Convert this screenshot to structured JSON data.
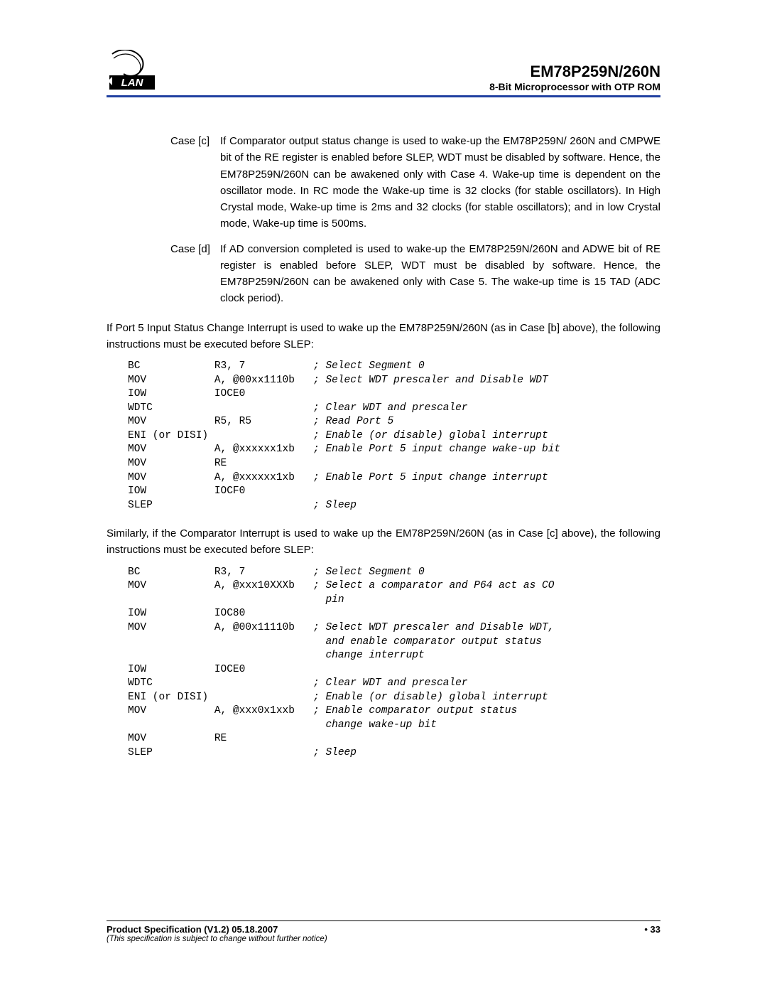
{
  "header": {
    "title": "EM78P259N/260N",
    "subtitle": "8-Bit Microprocessor with OTP ROM"
  },
  "cases": [
    {
      "label": "Case [c]",
      "text": "If Comparator output status change is used to wake-up the EM78P259N/ 260N and CMPWE bit of the RE register is enabled before SLEP, WDT must be disabled by software.  Hence, the EM78P259N/260N can be awakened only with Case 4.  Wake-up time is dependent on the oscillator mode.  In RC mode the Wake-up time is 32 clocks (for stable oscillators).  In High Crystal mode, Wake-up time is 2ms and 32 clocks (for stable oscillators); and in low Crystal mode, Wake-up time is 500ms."
    },
    {
      "label": "Case [d]",
      "text": "If AD conversion completed is used to wake-up the EM78P259N/260N and ADWE bit of RE register is enabled before SLEP, WDT must be disabled by software.  Hence, the EM78P259N/260N can be awakened only with Case 5.  The wake-up time is 15 TAD (ADC clock period)."
    }
  ],
  "para1": "If Port 5 Input Status Change Interrupt is used to wake up the EM78P259N/260N (as in Case [b] above), the following instructions must be executed before SLEP:",
  "code1": [
    {
      "op": "BC",
      "arg": "R3, 7",
      "cmt": "; Select Segment 0"
    },
    {
      "op": "MOV",
      "arg": "A, @00xx1110b",
      "cmt": "; Select WDT prescaler and Disable WDT"
    },
    {
      "op": "IOW",
      "arg": "IOCE0",
      "cmt": ""
    },
    {
      "op": "WDTC",
      "arg": "",
      "cmt": "; Clear WDT and prescaler"
    },
    {
      "op": "MOV",
      "arg": "R5, R5",
      "cmt": "; Read Port 5"
    },
    {
      "op": "ENI (or DISI)",
      "arg": "",
      "cmt": "; Enable (or disable) global interrupt"
    },
    {
      "op": "MOV",
      "arg": "A, @xxxxxx1xb",
      "cmt": "; Enable Port 5 input change wake-up bit"
    },
    {
      "op": "MOV",
      "arg": "RE",
      "cmt": ""
    },
    {
      "op": "MOV",
      "arg": "A, @xxxxxx1xb",
      "cmt": "; Enable Port 5 input change interrupt"
    },
    {
      "op": "IOW",
      "arg": "IOCF0",
      "cmt": ""
    },
    {
      "op": "SLEP",
      "arg": "",
      "cmt": "; Sleep"
    }
  ],
  "para2": "Similarly, if the Comparator Interrupt is used to wake up the EM78P259N/260N (as in Case [c] above), the following instructions must be executed before SLEP:",
  "code2": [
    {
      "op": "BC",
      "arg": "R3, 7",
      "cmt": "; Select Segment 0"
    },
    {
      "op": "MOV",
      "arg": "A, @xxx10XXXb",
      "cmt": "; Select a comparator and P64 act as CO"
    },
    {
      "op": "",
      "arg": "",
      "cmt": "  pin"
    },
    {
      "op": "IOW",
      "arg": "IOC80",
      "cmt": ""
    },
    {
      "op": "MOV",
      "arg": "A, @00x11110b",
      "cmt": "; Select WDT prescaler and Disable WDT,"
    },
    {
      "op": "",
      "arg": "",
      "cmt": "  and enable comparator output status"
    },
    {
      "op": "",
      "arg": "",
      "cmt": "  change interrupt"
    },
    {
      "op": "IOW",
      "arg": "IOCE0",
      "cmt": ""
    },
    {
      "op": "WDTC",
      "arg": "",
      "cmt": "; Clear WDT and prescaler"
    },
    {
      "op": "ENI (or DISI)",
      "arg": "",
      "cmt": "; Enable (or disable) global interrupt"
    },
    {
      "op": "MOV",
      "arg": "A, @xxx0x1xxb",
      "cmt": "; Enable comparator output status"
    },
    {
      "op": "",
      "arg": "",
      "cmt": "  change wake-up bit"
    },
    {
      "op": "MOV",
      "arg": "RE",
      "cmt": ""
    },
    {
      "op": "SLEP",
      "arg": "",
      "cmt": "; Sleep"
    }
  ],
  "footer": {
    "spec": "Product Specification (V1.2) 05.18.2007",
    "page": "• 33",
    "note": "(This specification is subject to change without further notice)"
  },
  "code_layout": {
    "col_op": 14,
    "col_arg": 16
  }
}
